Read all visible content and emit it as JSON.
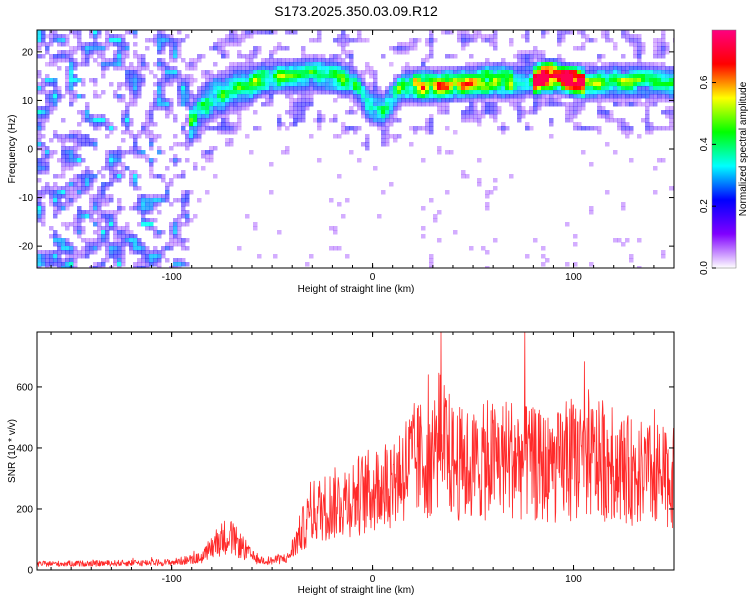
{
  "figure": {
    "title": "S173.2025.350.03.09.R12"
  },
  "chart_data": [
    {
      "type": "heatmap",
      "xlabel": "Height of straight line (km)",
      "ylabel": "Frequency (Hz)",
      "xlim": [
        -167,
        150
      ],
      "ylim": [
        -24.5,
        24.5
      ],
      "xticks": [
        -100,
        0,
        100
      ],
      "yticks": [
        -20,
        -10,
        0,
        10,
        20
      ],
      "grid": false,
      "colorbar": {
        "label": "Normalized spectral amplitude",
        "range": [
          0,
          0.77
        ],
        "ticks": [
          0.0,
          0.2,
          0.4,
          0.6
        ],
        "tick_labels": [
          "0.0",
          "0.2",
          "0.4",
          "0.6"
        ],
        "colors": [
          "#ffffff",
          "#8000ff",
          "#0000ff",
          "#00ffff",
          "#00ff00",
          "#ffff00",
          "#ff0000",
          "#ff0080"
        ]
      },
      "band_center": {
        "x": [
          -92,
          -85,
          -78,
          -72,
          -65,
          -58,
          -50,
          -40,
          -30,
          -20,
          -10,
          -2,
          5,
          15,
          30,
          45,
          60,
          75,
          90,
          100,
          110,
          120,
          135,
          150
        ],
        "y": [
          4,
          9,
          11,
          12,
          13,
          14,
          15,
          15,
          15.5,
          15,
          14,
          9,
          8,
          13,
          13,
          13.5,
          14,
          14,
          15,
          14,
          13.5,
          14,
          14,
          13.5
        ]
      }
    },
    {
      "type": "line",
      "xlabel": "Height of straight line (km)",
      "ylabel": "SNR (10 * v/v)",
      "xlim": [
        -167,
        150
      ],
      "ylim": [
        0,
        780
      ],
      "xticks": [
        -100,
        0,
        100
      ],
      "yticks": [
        0,
        200,
        400,
        600
      ],
      "grid": false,
      "line_color": "#ff2a2a",
      "series": [
        {
          "x": [
            -167,
            -130,
            -100,
            -85,
            -78,
            -72,
            -65,
            -58,
            -50,
            -42,
            -36,
            -30,
            -20,
            -10,
            0,
            10,
            20,
            28,
            34,
            40,
            50,
            60,
            70,
            80,
            90,
            100,
            110,
            120,
            130,
            140,
            150
          ],
          "y": [
            20,
            22,
            25,
            40,
            90,
            115,
            75,
            35,
            30,
            40,
            120,
            190,
            215,
            240,
            260,
            300,
            355,
            365,
            440,
            350,
            340,
            360,
            370,
            345,
            330,
            360,
            360,
            345,
            320,
            310,
            300
          ]
        }
      ]
    }
  ]
}
